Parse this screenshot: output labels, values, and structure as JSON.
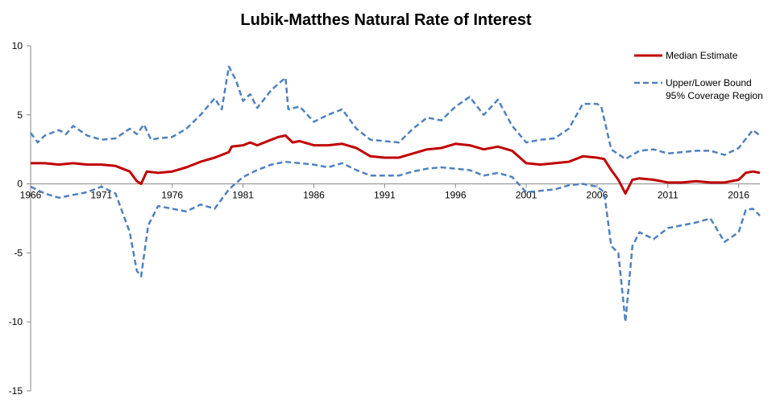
{
  "chart_data": {
    "type": "line",
    "title": "Lubik-Matthes Natural Rate of Interest",
    "xlabel": "",
    "ylabel": "",
    "xlim": [
      1966,
      2017.5
    ],
    "ylim": [
      -15,
      10
    ],
    "x_ticks": [
      "1966",
      "1971",
      "1976",
      "1981",
      "1986",
      "1991",
      "1996",
      "2001",
      "2006",
      "2011",
      "2016"
    ],
    "y_ticks": [
      "10",
      "5",
      "0",
      "-5",
      "-10",
      "-15"
    ],
    "grid": false,
    "legend_position": "top-right",
    "legend": [
      {
        "label": "Median Estimate",
        "series": "median"
      },
      {
        "label": "Upper/Lower Bound\n95% Coverage Region",
        "series": "upper"
      }
    ],
    "series": [
      {
        "id": "median",
        "name": "Median Estimate",
        "color": "#C00000",
        "style": "solid",
        "points": [
          [
            1966,
            1.5
          ],
          [
            1967,
            1.5
          ],
          [
            1968,
            1.4
          ],
          [
            1969,
            1.5
          ],
          [
            1970,
            1.4
          ],
          [
            1971,
            1.4
          ],
          [
            1972,
            1.3
          ],
          [
            1973,
            0.9
          ],
          [
            1973.5,
            0.2
          ],
          [
            1973.8,
            0.0
          ],
          [
            1974.2,
            0.9
          ],
          [
            1975,
            0.8
          ],
          [
            1976,
            0.9
          ],
          [
            1977,
            1.2
          ],
          [
            1978,
            1.6
          ],
          [
            1979,
            1.9
          ],
          [
            1980,
            2.3
          ],
          [
            1980.2,
            2.7
          ],
          [
            1981,
            2.8
          ],
          [
            1981.5,
            3.0
          ],
          [
            1982,
            2.8
          ],
          [
            1983,
            3.2
          ],
          [
            1983.5,
            3.4
          ],
          [
            1984,
            3.5
          ],
          [
            1984.5,
            3.0
          ],
          [
            1985,
            3.1
          ],
          [
            1986,
            2.8
          ],
          [
            1987,
            2.8
          ],
          [
            1988,
            2.9
          ],
          [
            1989,
            2.6
          ],
          [
            1990,
            2.0
          ],
          [
            1991,
            1.9
          ],
          [
            1992,
            1.9
          ],
          [
            1993,
            2.2
          ],
          [
            1994,
            2.5
          ],
          [
            1995,
            2.6
          ],
          [
            1996,
            2.9
          ],
          [
            1997,
            2.8
          ],
          [
            1998,
            2.5
          ],
          [
            1999,
            2.7
          ],
          [
            2000,
            2.4
          ],
          [
            2001,
            1.5
          ],
          [
            2002,
            1.4
          ],
          [
            2003,
            1.5
          ],
          [
            2004,
            1.6
          ],
          [
            2005,
            2.0
          ],
          [
            2006,
            1.9
          ],
          [
            2006.5,
            1.8
          ],
          [
            2007,
            1.0
          ],
          [
            2007.5,
            0.3
          ],
          [
            2008,
            -0.7
          ],
          [
            2008.5,
            0.3
          ],
          [
            2009,
            0.4
          ],
          [
            2010,
            0.3
          ],
          [
            2011,
            0.1
          ],
          [
            2012,
            0.1
          ],
          [
            2013,
            0.2
          ],
          [
            2014,
            0.1
          ],
          [
            2015,
            0.1
          ],
          [
            2016,
            0.3
          ],
          [
            2016.5,
            0.8
          ],
          [
            2017,
            0.9
          ],
          [
            2017.5,
            0.8
          ]
        ]
      },
      {
        "id": "upper",
        "name": "Upper/Lower Bound 95% Coverage Region",
        "color": "#4F81BD",
        "style": "dashed",
        "points": [
          [
            1966,
            3.7
          ],
          [
            1966.5,
            3.0
          ],
          [
            1967,
            3.5
          ],
          [
            1968,
            3.9
          ],
          [
            1968.5,
            3.6
          ],
          [
            1969,
            4.2
          ],
          [
            1970,
            3.5
          ],
          [
            1971,
            3.2
          ],
          [
            1972,
            3.3
          ],
          [
            1973,
            4.0
          ],
          [
            1973.5,
            3.6
          ],
          [
            1974,
            4.3
          ],
          [
            1974.5,
            3.2
          ],
          [
            1975,
            3.3
          ],
          [
            1976,
            3.4
          ],
          [
            1977,
            4.0
          ],
          [
            1978,
            5.0
          ],
          [
            1979,
            6.2
          ],
          [
            1979.5,
            5.4
          ],
          [
            1980,
            8.5
          ],
          [
            1980.5,
            7.5
          ],
          [
            1981,
            6.0
          ],
          [
            1981.5,
            6.5
          ],
          [
            1982,
            5.5
          ],
          [
            1983,
            6.8
          ],
          [
            1984,
            7.7
          ],
          [
            1984.2,
            5.4
          ],
          [
            1985,
            5.6
          ],
          [
            1986,
            4.5
          ],
          [
            1987,
            5.0
          ],
          [
            1988,
            5.4
          ],
          [
            1989,
            4.0
          ],
          [
            1990,
            3.2
          ],
          [
            1991,
            3.1
          ],
          [
            1992,
            3.0
          ],
          [
            1993,
            4.0
          ],
          [
            1994,
            4.8
          ],
          [
            1995,
            4.6
          ],
          [
            1996,
            5.6
          ],
          [
            1997,
            6.3
          ],
          [
            1998,
            5.0
          ],
          [
            1999,
            6.1
          ],
          [
            2000,
            4.2
          ],
          [
            2001,
            3.0
          ],
          [
            2002,
            3.2
          ],
          [
            2003,
            3.3
          ],
          [
            2004,
            4.0
          ],
          [
            2005,
            5.8
          ],
          [
            2006,
            5.8
          ],
          [
            2006.3,
            5.6
          ],
          [
            2007,
            2.5
          ],
          [
            2008,
            1.8
          ],
          [
            2009,
            2.4
          ],
          [
            2010,
            2.5
          ],
          [
            2011,
            2.2
          ],
          [
            2012,
            2.3
          ],
          [
            2013,
            2.4
          ],
          [
            2014,
            2.4
          ],
          [
            2015,
            2.1
          ],
          [
            2016,
            2.6
          ],
          [
            2017,
            3.9
          ],
          [
            2017.5,
            3.5
          ]
        ]
      },
      {
        "id": "lower",
        "name": "",
        "color": "#4F81BD",
        "style": "dashed",
        "points": [
          [
            1966,
            -0.2
          ],
          [
            1967,
            -0.7
          ],
          [
            1968,
            -1.0
          ],
          [
            1969,
            -0.8
          ],
          [
            1970,
            -0.6
          ],
          [
            1971,
            -0.2
          ],
          [
            1972,
            -0.7
          ],
          [
            1973,
            -3.5
          ],
          [
            1973.5,
            -6.3
          ],
          [
            1973.8,
            -6.7
          ],
          [
            1974.3,
            -3.0
          ],
          [
            1975,
            -1.6
          ],
          [
            1976,
            -1.8
          ],
          [
            1977,
            -2.0
          ],
          [
            1978,
            -1.5
          ],
          [
            1979,
            -1.8
          ],
          [
            1980,
            -0.4
          ],
          [
            1981,
            0.5
          ],
          [
            1982,
            1.0
          ],
          [
            1983,
            1.4
          ],
          [
            1984,
            1.6
          ],
          [
            1985,
            1.5
          ],
          [
            1986,
            1.4
          ],
          [
            1987,
            1.2
          ],
          [
            1988,
            1.5
          ],
          [
            1989,
            1.0
          ],
          [
            1990,
            0.6
          ],
          [
            1991,
            0.6
          ],
          [
            1992,
            0.6
          ],
          [
            1993,
            0.9
          ],
          [
            1994,
            1.1
          ],
          [
            1995,
            1.2
          ],
          [
            1996,
            1.1
          ],
          [
            1997,
            1.0
          ],
          [
            1998,
            0.6
          ],
          [
            1999,
            0.8
          ],
          [
            2000,
            0.5
          ],
          [
            2001,
            -0.6
          ],
          [
            2002,
            -0.5
          ],
          [
            2003,
            -0.4
          ],
          [
            2004,
            -0.1
          ],
          [
            2005,
            0.0
          ],
          [
            2006,
            -0.2
          ],
          [
            2006.5,
            -0.6
          ],
          [
            2007,
            -4.5
          ],
          [
            2007.5,
            -5.0
          ],
          [
            2008,
            -10.0
          ],
          [
            2008.5,
            -4.5
          ],
          [
            2009,
            -3.5
          ],
          [
            2010,
            -4.0
          ],
          [
            2011,
            -3.2
          ],
          [
            2012,
            -3.0
          ],
          [
            2013,
            -2.8
          ],
          [
            2014,
            -2.5
          ],
          [
            2015,
            -4.2
          ],
          [
            2016,
            -3.5
          ],
          [
            2016.5,
            -1.9
          ],
          [
            2017,
            -1.8
          ],
          [
            2017.5,
            -2.3
          ]
        ]
      }
    ]
  }
}
